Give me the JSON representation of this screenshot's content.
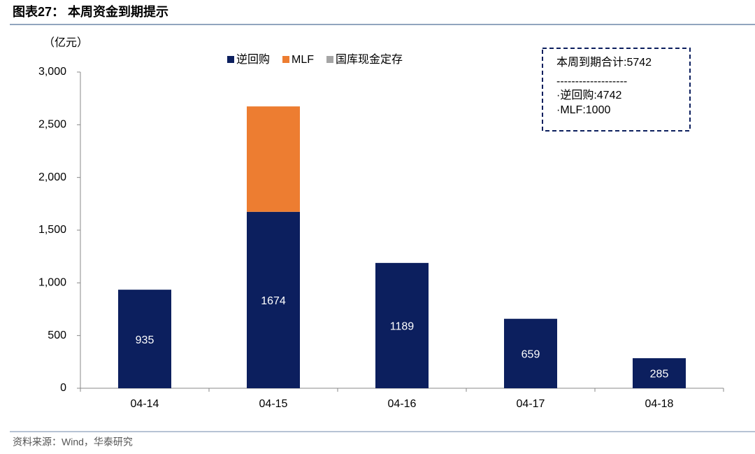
{
  "chart_data": {
    "type": "stacked_bar",
    "title": "图表27： 本周资金到期提示",
    "unit": "（亿元）",
    "categories": [
      "04-14",
      "04-15",
      "04-16",
      "04-17",
      "04-18"
    ],
    "series": [
      {
        "name": "逆回购",
        "color": "#0c1f5e",
        "values": [
          935,
          1674,
          1189,
          659,
          285
        ]
      },
      {
        "name": "MLF",
        "color": "#ed7d31",
        "values": [
          null,
          1000,
          null,
          null,
          null
        ]
      },
      {
        "name": "国库现金定存",
        "color": "#a5a5a5",
        "values": [
          null,
          null,
          null,
          null,
          null
        ]
      }
    ],
    "data_labels_series": 0,
    "ylim": [
      0,
      3000
    ],
    "yticks": [
      0,
      500,
      {
        "value": 1000,
        "label": "1,000"
      },
      {
        "value": 1500,
        "label": "1,500"
      },
      {
        "value": 2000,
        "label": "2,000"
      },
      {
        "value": 2500,
        "label": "2,500"
      },
      {
        "value": 3000,
        "label": "3,000"
      }
    ],
    "annotation": [
      "本周到期合计:5742",
      "-------------------",
      "·逆回购:4742",
      "·MLF:1000"
    ],
    "source": "资料来源：Wind，华泰研究"
  }
}
